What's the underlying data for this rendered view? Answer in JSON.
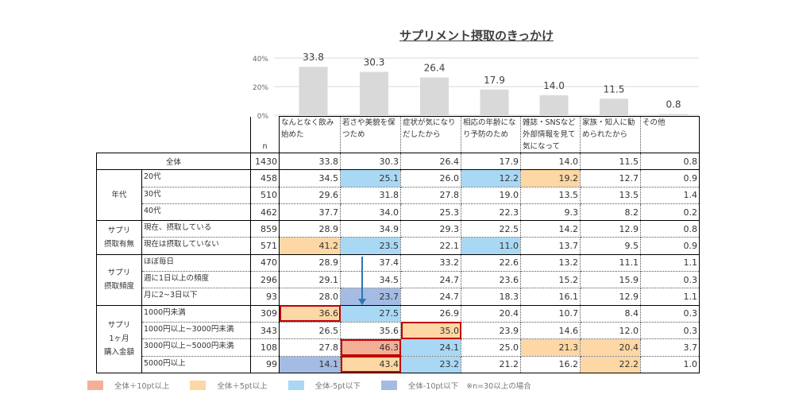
{
  "chart_data": {
    "type": "bar",
    "title": "サプリメント摂取のきっかけ",
    "categories": [
      "なんとなく飲み始めた",
      "若さや美貌を保つため",
      "症状が気になりだしたから",
      "相応の年齢になり予防のため",
      "雑誌・SNSなど外部情報を見て気になって",
      "家族・知人に勧められたから",
      "その他"
    ],
    "values": [
      33.8,
      30.3,
      26.4,
      17.9,
      14.0,
      11.5,
      0.8
    ],
    "value_labels": [
      "33.8",
      "30.3",
      "26.4",
      "17.9",
      "14.0",
      "11.5",
      "0.8"
    ],
    "ylim": [
      0,
      40
    ],
    "yticks": [
      "0%",
      "20%",
      "40%"
    ],
    "grid": true,
    "bar_color": "#d9d9d9"
  },
  "table": {
    "n_header": "n",
    "rows": [
      {
        "group": "全体",
        "label": "",
        "n": "1430",
        "values": [
          "33.8",
          "30.3",
          "26.4",
          "17.9",
          "14.0",
          "11.5",
          "0.8"
        ],
        "flags": [
          0,
          0,
          0,
          0,
          0,
          0,
          0
        ]
      },
      {
        "group": "年代",
        "label": "20代",
        "n": "458",
        "values": [
          "34.5",
          "25.1",
          "26.0",
          "12.2",
          "19.2",
          "12.7",
          "0.9"
        ],
        "flags": [
          0,
          -5,
          0,
          -5,
          5,
          0,
          0
        ]
      },
      {
        "group": "",
        "label": "30代",
        "n": "510",
        "values": [
          "29.6",
          "31.8",
          "27.8",
          "19.0",
          "13.5",
          "13.5",
          "1.4"
        ],
        "flags": [
          0,
          0,
          0,
          0,
          0,
          0,
          0
        ]
      },
      {
        "group": "",
        "label": "40代",
        "n": "462",
        "values": [
          "37.7",
          "34.0",
          "25.3",
          "22.3",
          "9.3",
          "8.2",
          "0.2"
        ],
        "flags": [
          0,
          0,
          0,
          0,
          0,
          0,
          0
        ]
      },
      {
        "group": "サプリ\n摂取有無",
        "label": "現在、摂取している",
        "n": "859",
        "values": [
          "28.9",
          "34.9",
          "29.3",
          "22.5",
          "14.2",
          "12.9",
          "0.8"
        ],
        "flags": [
          0,
          0,
          0,
          0,
          0,
          0,
          0
        ]
      },
      {
        "group": "",
        "label": "現在は摂取していない",
        "n": "571",
        "values": [
          "41.2",
          "23.5",
          "22.1",
          "11.0",
          "13.7",
          "9.5",
          "0.9"
        ],
        "flags": [
          5,
          -5,
          0,
          -5,
          0,
          0,
          0
        ]
      },
      {
        "group": "サプリ\n摂取頻度",
        "label": "ほぼ毎日",
        "n": "470",
        "values": [
          "28.9",
          "37.4",
          "33.2",
          "22.6",
          "13.2",
          "11.1",
          "1.1"
        ],
        "flags": [
          0,
          0,
          0,
          0,
          0,
          0,
          0
        ]
      },
      {
        "group": "",
        "label": "週に1日以上の頻度",
        "n": "296",
        "values": [
          "29.1",
          "34.5",
          "24.7",
          "23.6",
          "15.2",
          "15.9",
          "0.3"
        ],
        "flags": [
          0,
          0,
          0,
          0,
          0,
          0,
          0
        ]
      },
      {
        "group": "",
        "label": "月に2~3日以下",
        "n": "93",
        "values": [
          "28.0",
          "23.7",
          "24.7",
          "18.3",
          "16.1",
          "12.9",
          "1.1"
        ],
        "flags": [
          0,
          -10,
          0,
          0,
          0,
          0,
          0
        ]
      },
      {
        "group": "サプリ\n1ヶ月\n購入金額",
        "label": "1000円未満",
        "n": "309",
        "values": [
          "36.6",
          "27.5",
          "26.9",
          "20.4",
          "10.7",
          "8.4",
          "0.3"
        ],
        "flags": [
          5,
          -5,
          0,
          0,
          0,
          0,
          0
        ],
        "highlight": [
          0
        ]
      },
      {
        "group": "",
        "label": "1000円以上~3000円未満",
        "n": "343",
        "values": [
          "26.5",
          "35.6",
          "35.0",
          "23.9",
          "14.6",
          "12.0",
          "0.3"
        ],
        "flags": [
          0,
          0,
          5,
          0,
          0,
          0,
          0
        ],
        "highlight": [
          2
        ]
      },
      {
        "group": "",
        "label": "3000円以上~5000円未満",
        "n": "108",
        "values": [
          "27.8",
          "46.3",
          "24.1",
          "25.0",
          "21.3",
          "20.4",
          "3.7"
        ],
        "flags": [
          0,
          10,
          -5,
          0,
          5,
          5,
          0
        ],
        "highlight": [
          1
        ]
      },
      {
        "group": "",
        "label": "5000円以上",
        "n": "99",
        "values": [
          "14.1",
          "43.4",
          "23.2",
          "21.2",
          "16.2",
          "22.2",
          "1.0"
        ],
        "flags": [
          -10,
          5,
          -5,
          0,
          0,
          5,
          0
        ],
        "highlight": [
          1
        ]
      }
    ]
  },
  "colors": {
    "plus10": "#f4b097",
    "plus5": "#fdd7a4",
    "minus5": "#a9d8f4",
    "minus10": "#a4bbe3",
    "highlight_border": "#c00000",
    "arrow": "#2e75b6"
  },
  "legend": [
    {
      "label": "全体＋10pt以上",
      "color": "#f4b097"
    },
    {
      "label": "全体＋5pt以上",
      "color": "#fdd7a4"
    },
    {
      "label": "全体-5pt以下",
      "color": "#a9d8f4"
    },
    {
      "label": "全体-10pt以下",
      "color": "#a4bbe3"
    }
  ],
  "note": "※n=30以上の場合"
}
